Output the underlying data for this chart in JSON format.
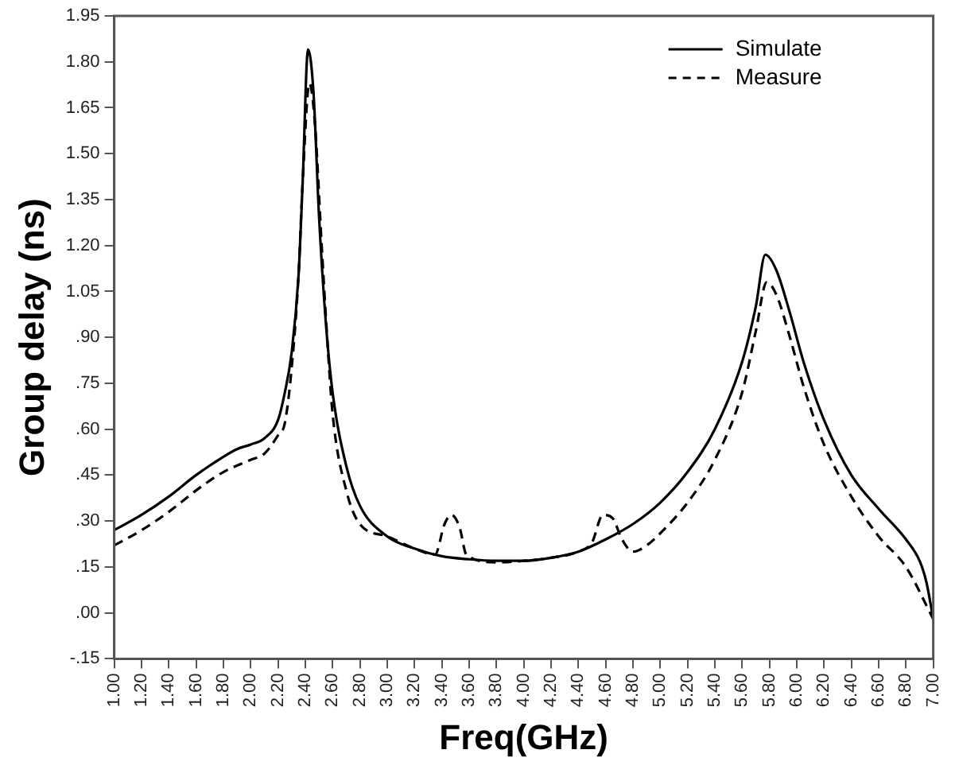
{
  "chart_data": {
    "type": "line",
    "xlabel": "Freq(GHz)",
    "ylabel": "Group delay (ns)",
    "xlim": [
      1,
      7
    ],
    "xticks": [
      {
        "value": 1,
        "label": "1.00"
      },
      {
        "value": 1.2,
        "label": "1.20"
      },
      {
        "value": 1.4,
        "label": "1.40"
      },
      {
        "value": 1.6,
        "label": "1.60"
      },
      {
        "value": 1.8,
        "label": "1.80"
      },
      {
        "value": 2,
        "label": "2.00"
      },
      {
        "value": 2.2,
        "label": "2.20"
      },
      {
        "value": 2.4,
        "label": "2.40"
      },
      {
        "value": 2.6,
        "label": "2.60"
      },
      {
        "value": 2.8,
        "label": "2.80"
      },
      {
        "value": 3,
        "label": "3.00"
      },
      {
        "value": 3.2,
        "label": "3.20"
      },
      {
        "value": 3.4,
        "label": "3.40"
      },
      {
        "value": 3.6,
        "label": "3.60"
      },
      {
        "value": 3.8,
        "label": "3.80"
      },
      {
        "value": 4,
        "label": "4.00"
      },
      {
        "value": 4.2,
        "label": "4.20"
      },
      {
        "value": 4.4,
        "label": "4.40"
      },
      {
        "value": 4.6,
        "label": "4.60"
      },
      {
        "value": 4.8,
        "label": "4.80"
      },
      {
        "value": 5,
        "label": "5.00"
      },
      {
        "value": 5.2,
        "label": "5.20"
      },
      {
        "value": 5.4,
        "label": "5.40"
      },
      {
        "value": 5.6,
        "label": "5.60"
      },
      {
        "value": 5.8,
        "label": "5.80"
      },
      {
        "value": 6,
        "label": "6.00"
      },
      {
        "value": 6.2,
        "label": "6.20"
      },
      {
        "value": 6.4,
        "label": "6.40"
      },
      {
        "value": 6.6,
        "label": "6.60"
      },
      {
        "value": 6.8,
        "label": "6.80"
      },
      {
        "value": 7,
        "label": "7.00"
      }
    ],
    "ylim": [
      -0.15,
      1.95
    ],
    "yticks": [
      {
        "value": -0.15,
        "label": "-.15"
      },
      {
        "value": 0,
        "label": ".00"
      },
      {
        "value": 0.15,
        "label": ".15"
      },
      {
        "value": 0.3,
        "label": ".30"
      },
      {
        "value": 0.45,
        "label": ".45"
      },
      {
        "value": 0.6,
        "label": ".60"
      },
      {
        "value": 0.75,
        "label": ".75"
      },
      {
        "value": 0.9,
        "label": ".90"
      },
      {
        "value": 1.05,
        "label": "1.05"
      },
      {
        "value": 1.2,
        "label": "1.20"
      },
      {
        "value": 1.35,
        "label": "1.35"
      },
      {
        "value": 1.5,
        "label": "1.50"
      },
      {
        "value": 1.65,
        "label": "1.65"
      },
      {
        "value": 1.8,
        "label": "1.80"
      },
      {
        "value": 1.95,
        "label": "1.95"
      }
    ],
    "grid": false,
    "legend": "top right",
    "marker": "none",
    "series": [
      {
        "name": "Simulate",
        "color": "#000000",
        "line_style": "solid",
        "x": [
          1,
          1.2,
          1.4,
          1.6,
          1.8,
          1.9,
          2,
          2.1,
          2.2,
          2.25,
          2.3,
          2.35,
          2.38,
          2.42,
          2.46,
          2.5,
          2.55,
          2.6,
          2.7,
          2.8,
          3,
          3.2,
          3.4,
          3.6,
          3.8,
          4,
          4.2,
          4.4,
          4.6,
          4.8,
          5,
          5.2,
          5.4,
          5.6,
          5.7,
          5.77,
          5.85,
          5.95,
          6.05,
          6.2,
          6.4,
          6.6,
          6.8,
          6.9,
          6.95,
          7
        ],
        "values": [
          0.27,
          0.32,
          0.38,
          0.45,
          0.51,
          0.535,
          0.55,
          0.57,
          0.63,
          0.72,
          0.85,
          1.1,
          1.4,
          1.84,
          1.7,
          1.3,
          0.95,
          0.72,
          0.48,
          0.35,
          0.25,
          0.21,
          0.185,
          0.175,
          0.17,
          0.17,
          0.18,
          0.2,
          0.24,
          0.29,
          0.36,
          0.46,
          0.6,
          0.82,
          1.0,
          1.17,
          1.12,
          0.98,
          0.82,
          0.63,
          0.45,
          0.34,
          0.24,
          0.17,
          0.1,
          -0.02
        ]
      },
      {
        "name": "Measure",
        "color": "#000000",
        "line_style": "dashed",
        "x": [
          1,
          1.2,
          1.4,
          1.6,
          1.8,
          2,
          2.1,
          2.2,
          2.25,
          2.3,
          2.35,
          2.38,
          2.43,
          2.47,
          2.52,
          2.56,
          2.6,
          2.7,
          2.8,
          3,
          3.2,
          3.35,
          3.42,
          3.47,
          3.53,
          3.58,
          3.8,
          4,
          4.2,
          4.4,
          4.5,
          4.58,
          4.65,
          4.72,
          4.8,
          4.9,
          5,
          5.2,
          5.4,
          5.6,
          5.7,
          5.78,
          5.85,
          5.95,
          6.05,
          6.2,
          6.4,
          6.6,
          6.8,
          7
        ],
        "values": [
          0.22,
          0.27,
          0.33,
          0.4,
          0.46,
          0.5,
          0.52,
          0.58,
          0.62,
          0.8,
          1.1,
          1.4,
          1.73,
          1.6,
          1.2,
          0.9,
          0.65,
          0.4,
          0.29,
          0.25,
          0.21,
          0.19,
          0.29,
          0.32,
          0.28,
          0.19,
          0.165,
          0.17,
          0.18,
          0.2,
          0.23,
          0.32,
          0.31,
          0.24,
          0.2,
          0.22,
          0.26,
          0.36,
          0.5,
          0.72,
          0.92,
          1.08,
          1.04,
          0.9,
          0.74,
          0.55,
          0.38,
          0.25,
          0.15,
          -0.02
        ]
      }
    ]
  }
}
